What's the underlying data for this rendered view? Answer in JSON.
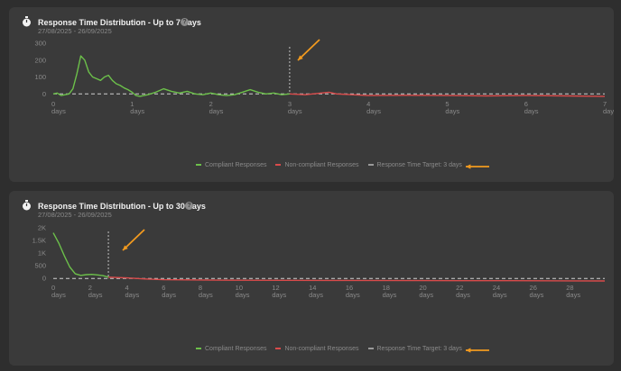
{
  "colors": {
    "compliant": "#6cc04a",
    "noncompliant": "#d94b4b",
    "target": "#9a9a9a",
    "arrow": "#f29a1f",
    "axis_text": "#8a8a8a"
  },
  "icons": {
    "title": "stopwatch-icon",
    "help": "question-circle-icon",
    "annotation": "orange-arrow-icon"
  },
  "cards": [
    {
      "title": "Response Time Distribution - Up to 7 days",
      "subtitle": "27/08/2025 - 26/09/2025",
      "help": "?",
      "legend": [
        "Compliant Responses",
        "Non-compliant Responses",
        "Response Time Target: 3 days"
      ]
    },
    {
      "title": "Response Time Distribution - Up to 30 days",
      "subtitle": "27/08/2025 - 26/09/2025",
      "help": "?",
      "legend": [
        "Compliant Responses",
        "Non-compliant Responses",
        "Response Time Target: 3 days"
      ]
    }
  ],
  "chart_data": [
    {
      "type": "line",
      "title": "Response Time Distribution - Up to 7 days",
      "xlim": [
        0,
        7
      ],
      "ylim": [
        -20,
        300
      ],
      "xticks": [
        0,
        1,
        2,
        3,
        4,
        5,
        6,
        7
      ],
      "xtick_labels": [
        "0",
        "1",
        "2",
        "3",
        "4",
        "5",
        "6",
        "7"
      ],
      "xtick_unit": "days",
      "yticks": [
        0,
        100,
        200,
        300
      ],
      "ytick_labels": [
        "0",
        "100",
        "200",
        "300"
      ],
      "target": 3,
      "series": [
        {
          "name": "Compliant Responses",
          "x": [
            0,
            0.05,
            0.1,
            0.15,
            0.2,
            0.25,
            0.3,
            0.35,
            0.4,
            0.45,
            0.5,
            0.55,
            0.6,
            0.65,
            0.7,
            0.75,
            0.8,
            0.85,
            0.9,
            0.95,
            1.0,
            1.05,
            1.1,
            1.15,
            1.2,
            1.3,
            1.4,
            1.5,
            1.6,
            1.7,
            1.8,
            1.9,
            2.0,
            2.1,
            2.2,
            2.3,
            2.4,
            2.5,
            2.6,
            2.7,
            2.8,
            2.9,
            3.0
          ],
          "y": [
            0,
            5,
            -10,
            -5,
            0,
            30,
            120,
            225,
            200,
            130,
            100,
            90,
            80,
            100,
            110,
            80,
            60,
            50,
            35,
            25,
            10,
            -10,
            -15,
            -10,
            -5,
            10,
            30,
            15,
            5,
            15,
            0,
            -5,
            5,
            -5,
            -10,
            -5,
            10,
            25,
            10,
            0,
            5,
            -5,
            0
          ]
        },
        {
          "name": "Non-compliant Responses",
          "x": [
            3.0,
            3.2,
            3.4,
            3.5,
            3.6,
            3.8,
            4.0,
            4.5,
            5.0,
            5.5,
            6.0,
            6.5,
            7.0
          ],
          "y": [
            0,
            -5,
            5,
            10,
            0,
            -5,
            -10,
            -8,
            -10,
            -12,
            -10,
            -12,
            -15
          ]
        }
      ]
    },
    {
      "type": "line",
      "title": "Response Time Distribution - Up to 30 days",
      "xlim": [
        0,
        30
      ],
      "ylim": [
        -100,
        2000
      ],
      "xticks": [
        0,
        2,
        4,
        6,
        8,
        10,
        12,
        14,
        16,
        18,
        20,
        22,
        24,
        26,
        28
      ],
      "xtick_labels": [
        "0",
        "2",
        "4",
        "6",
        "8",
        "10",
        "12",
        "14",
        "16",
        "18",
        "20",
        "22",
        "24",
        "26",
        "28"
      ],
      "xtick_unit": "days",
      "yticks": [
        0,
        500,
        1000,
        1500,
        2000
      ],
      "ytick_labels": [
        "0",
        "500",
        "1K",
        "1.5K",
        "2K"
      ],
      "target": 3,
      "series": [
        {
          "name": "Compliant Responses",
          "x": [
            0,
            0.3,
            0.6,
            0.9,
            1.2,
            1.5,
            1.8,
            2.1,
            2.4,
            2.7,
            3.0
          ],
          "y": [
            1800,
            1400,
            900,
            450,
            180,
            120,
            150,
            160,
            140,
            110,
            50
          ]
        },
        {
          "name": "Non-compliant Responses",
          "x": [
            3,
            4,
            5,
            6,
            8,
            10,
            15,
            20,
            25,
            30
          ],
          "y": [
            50,
            20,
            -20,
            -50,
            -60,
            -70,
            -80,
            -85,
            -90,
            -100
          ]
        }
      ]
    }
  ]
}
